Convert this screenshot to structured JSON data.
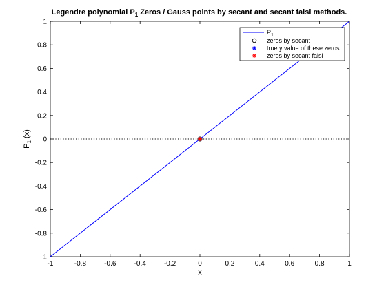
{
  "chart_data": {
    "type": "line",
    "title": "Legendre polynomial P",
    "title_sub": "1",
    "title_rest": " Zeros / Gauss points by secant and secant falsi methods.",
    "xlabel": "x",
    "ylabel": "P",
    "ylabel_sub": "1",
    "ylabel_rest": "(x)",
    "xlim": [
      -1,
      1
    ],
    "ylim": [
      -1,
      1
    ],
    "xticks": [
      -1,
      -0.8,
      -0.6,
      -0.4,
      -0.2,
      0,
      0.2,
      0.4,
      0.6,
      0.8,
      1
    ],
    "yticks": [
      -1,
      -0.8,
      -0.6,
      -0.4,
      -0.2,
      0,
      0.2,
      0.4,
      0.6,
      0.8,
      1
    ],
    "xtick_labels": [
      "-1",
      "-0.8",
      "-0.6",
      "-0.4",
      "-0.2",
      "0",
      "0.2",
      "0.4",
      "0.6",
      "0.8",
      "1"
    ],
    "ytick_labels": [
      "-1",
      "-0.8",
      "-0.6",
      "-0.4",
      "-0.2",
      "0",
      "0.2",
      "0.4",
      "0.6",
      "0.8",
      "1"
    ],
    "grid": false,
    "legend_position": "top-right",
    "zero_line": {
      "y": 0,
      "style": "dotted",
      "color": "#000000"
    },
    "series": [
      {
        "name": "P",
        "name_sub": "1",
        "kind": "line",
        "color": "#0000ff",
        "x": [
          -1,
          1
        ],
        "y": [
          -1,
          1
        ]
      },
      {
        "name": "zeros by secant",
        "kind": "marker",
        "marker": "circle-open",
        "color": "#000000",
        "x": [
          0
        ],
        "y": [
          0
        ]
      },
      {
        "name": "true y value of these zeros",
        "kind": "marker",
        "marker": "asterisk",
        "color": "#0000ff",
        "x": [
          0
        ],
        "y": [
          0
        ]
      },
      {
        "name": "zeros by secant falsi",
        "kind": "marker",
        "marker": "asterisk",
        "color": "#ff0000",
        "x": [
          0
        ],
        "y": [
          0
        ]
      }
    ]
  }
}
